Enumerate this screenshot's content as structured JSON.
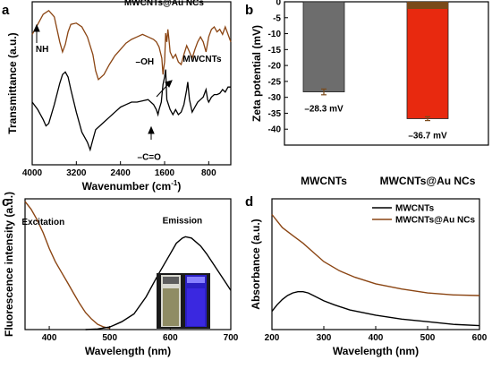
{
  "chart_data": [
    {
      "panel": "a",
      "type": "line",
      "xlabel": "Wavenumber (cm",
      "xlabel_sup": "-1",
      "xlabel_tail": ")",
      "ylabel": "Transmittance (a.u.)",
      "xlim": [
        4000,
        400
      ],
      "x_reversed": true,
      "xticks": [
        4000,
        3200,
        2400,
        1600,
        800
      ],
      "x_tick_labels": [
        "4000",
        "3200",
        "2400",
        "1600",
        "800"
      ],
      "series": [
        {
          "name": "MWCNTs@Au NCs",
          "color": "#8B4513",
          "points": [
            [
              4000,
              0.74
            ],
            [
              3900,
              0.82
            ],
            [
              3800,
              0.9
            ],
            [
              3700,
              0.93
            ],
            [
              3600,
              0.88
            ],
            [
              3500,
              0.68
            ],
            [
              3450,
              0.6
            ],
            [
              3400,
              0.66
            ],
            [
              3350,
              0.76
            ],
            [
              3300,
              0.82
            ],
            [
              3200,
              0.83
            ],
            [
              3100,
              0.8
            ],
            [
              3000,
              0.72
            ],
            [
              2900,
              0.58
            ],
            [
              2850,
              0.45
            ],
            [
              2800,
              0.38
            ],
            [
              2700,
              0.42
            ],
            [
              2600,
              0.5
            ],
            [
              2500,
              0.57
            ],
            [
              2400,
              0.62
            ],
            [
              2300,
              0.67
            ],
            [
              2200,
              0.7
            ],
            [
              2100,
              0.72
            ],
            [
              2000,
              0.74
            ],
            [
              1900,
              0.72
            ],
            [
              1800,
              0.7
            ],
            [
              1750,
              0.68
            ],
            [
              1700,
              0.64
            ],
            [
              1650,
              0.55
            ],
            [
              1630,
              0.42
            ],
            [
              1620,
              0.46
            ],
            [
              1600,
              0.52
            ],
            [
              1580,
              0.75
            ],
            [
              1560,
              0.68
            ],
            [
              1540,
              0.78
            ],
            [
              1520,
              0.7
            ],
            [
              1500,
              0.6
            ],
            [
              1450,
              0.55
            ],
            [
              1400,
              0.58
            ],
            [
              1350,
              0.52
            ],
            [
              1300,
              0.5
            ],
            [
              1250,
              0.58
            ],
            [
              1200,
              0.65
            ],
            [
              1150,
              0.6
            ],
            [
              1100,
              0.55
            ],
            [
              1050,
              0.62
            ],
            [
              1000,
              0.68
            ],
            [
              950,
              0.72
            ],
            [
              900,
              0.68
            ],
            [
              850,
              0.6
            ],
            [
              800,
              0.72
            ],
            [
              750,
              0.78
            ],
            [
              700,
              0.8
            ],
            [
              650,
              0.76
            ],
            [
              600,
              0.78
            ],
            [
              550,
              0.74
            ],
            [
              500,
              0.8
            ],
            [
              450,
              0.74
            ],
            [
              400,
              0.68
            ]
          ]
        },
        {
          "name": "MWCNTs",
          "color": "#000000",
          "points": [
            [
              4000,
              0.2
            ],
            [
              3900,
              0.14
            ],
            [
              3800,
              0.06
            ],
            [
              3750,
              0.01
            ],
            [
              3700,
              0.03
            ],
            [
              3600,
              0.18
            ],
            [
              3500,
              0.35
            ],
            [
              3450,
              0.42
            ],
            [
              3400,
              0.44
            ],
            [
              3350,
              0.4
            ],
            [
              3300,
              0.3
            ],
            [
              3200,
              0.12
            ],
            [
              3100,
              -0.04
            ],
            [
              3000,
              -0.12
            ],
            [
              2950,
              -0.18
            ],
            [
              2900,
              -0.1
            ],
            [
              2850,
              -0.02
            ],
            [
              2800,
              0.0
            ],
            [
              2700,
              0.04
            ],
            [
              2600,
              0.08
            ],
            [
              2500,
              0.12
            ],
            [
              2400,
              0.16
            ],
            [
              2300,
              0.18
            ],
            [
              2200,
              0.2
            ],
            [
              2100,
              0.2
            ],
            [
              2000,
              0.21
            ],
            [
              1900,
              0.22
            ],
            [
              1850,
              0.2
            ],
            [
              1800,
              0.18
            ],
            [
              1750,
              0.14
            ],
            [
              1720,
              0.1
            ],
            [
              1700,
              0.14
            ],
            [
              1660,
              0.2
            ],
            [
              1630,
              0.34
            ],
            [
              1600,
              0.4
            ],
            [
              1580,
              0.46
            ],
            [
              1560,
              0.22
            ],
            [
              1500,
              0.14
            ],
            [
              1450,
              0.1
            ],
            [
              1400,
              0.14
            ],
            [
              1350,
              0.1
            ],
            [
              1300,
              0.12
            ],
            [
              1250,
              0.18
            ],
            [
              1200,
              0.3
            ],
            [
              1180,
              0.36
            ],
            [
              1150,
              0.22
            ],
            [
              1100,
              0.12
            ],
            [
              1050,
              0.16
            ],
            [
              1000,
              0.2
            ],
            [
              950,
              0.22
            ],
            [
              900,
              0.24
            ],
            [
              850,
              0.3
            ],
            [
              820,
              0.22
            ],
            [
              800,
              0.2
            ],
            [
              750,
              0.24
            ],
            [
              700,
              0.26
            ],
            [
              650,
              0.26
            ],
            [
              600,
              0.27
            ],
            [
              550,
              0.3
            ],
            [
              500,
              0.28
            ],
            [
              450,
              0.32
            ],
            [
              400,
              0.32
            ]
          ]
        }
      ],
      "annotations": [
        {
          "text": "MWCNTs@Au NCs",
          "color": "#8B4513",
          "x": 1610,
          "y": 0.97
        },
        {
          "text": "NH",
          "color": "#000000",
          "x": 3820,
          "y": 0.6
        },
        {
          "text": "–OH",
          "color": "#000000",
          "x": 1960,
          "y": 0.5
        },
        {
          "text": "MWCNTs",
          "color": "#000000",
          "x": 920,
          "y": 0.52
        },
        {
          "text": "–C=O",
          "color": "#000000",
          "x": 1880,
          "y": -0.26
        }
      ]
    },
    {
      "panel": "b",
      "type": "bar",
      "ylabel": "Zeta potential (mV)",
      "ylim": [
        -45,
        0
      ],
      "yticks": [
        0,
        -5,
        -10,
        -15,
        -20,
        -25,
        -30,
        -35,
        -40
      ],
      "y_tick_labels": [
        "0",
        "-5",
        "-10",
        "-15",
        "-20",
        "-25",
        "-30",
        "-35",
        "-40"
      ],
      "categories": [
        "MWCNTs",
        "MWCNTs@Au NCs"
      ],
      "values": [
        -28.3,
        -36.7
      ],
      "errors": [
        0.9,
        0.6
      ],
      "value_labels": [
        "–28.3 mV",
        "–36.7 mV"
      ],
      "colors": [
        "#6d6d6d",
        "#e8290f"
      ],
      "cap_color": "#7a4a1a"
    },
    {
      "panel": "c",
      "type": "line",
      "xlabel": "Wavelength (nm)",
      "ylabel": "Fluorescence intensity (a.u.)",
      "xlim": [
        360,
        700
      ],
      "ylim": [
        0,
        1
      ],
      "xticks": [
        400,
        500,
        600,
        700
      ],
      "x_tick_labels": [
        "400",
        "500",
        "600",
        "700"
      ],
      "series": [
        {
          "name": "Excitation",
          "color": "#8B4513",
          "points": [
            [
              360,
              0.98
            ],
            [
              370,
              0.92
            ],
            [
              380,
              0.84
            ],
            [
              390,
              0.74
            ],
            [
              400,
              0.62
            ],
            [
              410,
              0.52
            ],
            [
              420,
              0.44
            ],
            [
              430,
              0.36
            ],
            [
              440,
              0.28
            ],
            [
              450,
              0.2
            ],
            [
              460,
              0.13
            ],
            [
              470,
              0.08
            ],
            [
              480,
              0.04
            ],
            [
              490,
              0.02
            ],
            [
              500,
              0.01
            ]
          ]
        },
        {
          "name": "Emission",
          "color": "#000000",
          "points": [
            [
              460,
              0.0
            ],
            [
              480,
              0.005
            ],
            [
              500,
              0.02
            ],
            [
              510,
              0.04
            ],
            [
              520,
              0.06
            ],
            [
              540,
              0.12
            ],
            [
              560,
              0.25
            ],
            [
              580,
              0.42
            ],
            [
              600,
              0.58
            ],
            [
              610,
              0.66
            ],
            [
              620,
              0.7
            ],
            [
              625,
              0.71
            ],
            [
              635,
              0.7
            ],
            [
              650,
              0.64
            ],
            [
              660,
              0.58
            ],
            [
              680,
              0.44
            ],
            [
              700,
              0.3
            ]
          ]
        }
      ],
      "annotations": [
        {
          "text": "Excitation",
          "color": "#8B4513",
          "x": 390,
          "y": 0.8
        },
        {
          "text": "Emission",
          "color": "#000000",
          "x": 620,
          "y": 0.81
        }
      ]
    },
    {
      "panel": "d",
      "type": "line",
      "xlabel": "Wavelength (nm)",
      "ylabel": "Absorbance (a.u.)",
      "xlim": [
        200,
        600
      ],
      "ylim": [
        0,
        1
      ],
      "xticks": [
        200,
        300,
        400,
        500,
        600
      ],
      "x_tick_labels": [
        "200",
        "300",
        "400",
        "500",
        "600"
      ],
      "legend": "top-right",
      "series": [
        {
          "name": "MWCNTs",
          "color": "#000000",
          "points": [
            [
              200,
              0.14
            ],
            [
              210,
              0.19
            ],
            [
              220,
              0.23
            ],
            [
              230,
              0.26
            ],
            [
              240,
              0.28
            ],
            [
              250,
              0.29
            ],
            [
              260,
              0.29
            ],
            [
              270,
              0.28
            ],
            [
              280,
              0.26
            ],
            [
              300,
              0.22
            ],
            [
              320,
              0.19
            ],
            [
              350,
              0.15
            ],
            [
              400,
              0.11
            ],
            [
              450,
              0.08
            ],
            [
              500,
              0.06
            ],
            [
              550,
              0.04
            ],
            [
              600,
              0.03
            ]
          ]
        },
        {
          "name": "MWCNTs@Au NCs",
          "color": "#8B4513",
          "points": [
            [
              200,
              0.88
            ],
            [
              220,
              0.78
            ],
            [
              240,
              0.72
            ],
            [
              260,
              0.66
            ],
            [
              280,
              0.59
            ],
            [
              300,
              0.52
            ],
            [
              330,
              0.45
            ],
            [
              360,
              0.4
            ],
            [
              400,
              0.35
            ],
            [
              450,
              0.31
            ],
            [
              500,
              0.28
            ],
            [
              550,
              0.265
            ],
            [
              600,
              0.26
            ]
          ]
        }
      ]
    }
  ]
}
